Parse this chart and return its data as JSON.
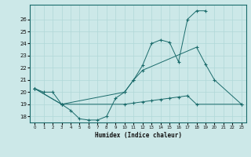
{
  "xlabel": "Humidex (Indice chaleur)",
  "bg_color": "#cce8e8",
  "grid_color": "#b0d8d8",
  "line_color": "#1a6b6b",
  "ylim": [
    17.5,
    27.2
  ],
  "xlim": [
    -0.5,
    23.5
  ],
  "yticks": [
    18,
    19,
    20,
    21,
    22,
    23,
    24,
    25,
    26
  ],
  "xticks": [
    0,
    1,
    2,
    3,
    4,
    5,
    6,
    7,
    8,
    9,
    10,
    11,
    12,
    13,
    14,
    15,
    16,
    17,
    18,
    19,
    20,
    21,
    22,
    23
  ],
  "line1_x": [
    0,
    1,
    2,
    3,
    4,
    5,
    6,
    7,
    8,
    9,
    10,
    11,
    12,
    13,
    14,
    15,
    16,
    17,
    18,
    19
  ],
  "line1_y": [
    20.3,
    20.0,
    20.0,
    19.0,
    18.5,
    17.8,
    17.7,
    17.7,
    18.0,
    19.5,
    20.0,
    21.0,
    22.2,
    24.0,
    24.3,
    24.1,
    22.5,
    26.0,
    26.7,
    26.7
  ],
  "line2_x": [
    0,
    3,
    10,
    11,
    12,
    18,
    19,
    20,
    23
  ],
  "line2_y": [
    20.3,
    19.0,
    20.0,
    21.0,
    21.8,
    23.7,
    22.3,
    21.0,
    19.0
  ],
  "line3_x": [
    0,
    3,
    10,
    11,
    12,
    13,
    14,
    15,
    16,
    17,
    18,
    23
  ],
  "line3_y": [
    20.3,
    19.0,
    19.0,
    19.1,
    19.2,
    19.3,
    19.4,
    19.5,
    19.6,
    19.7,
    19.0,
    19.0
  ]
}
